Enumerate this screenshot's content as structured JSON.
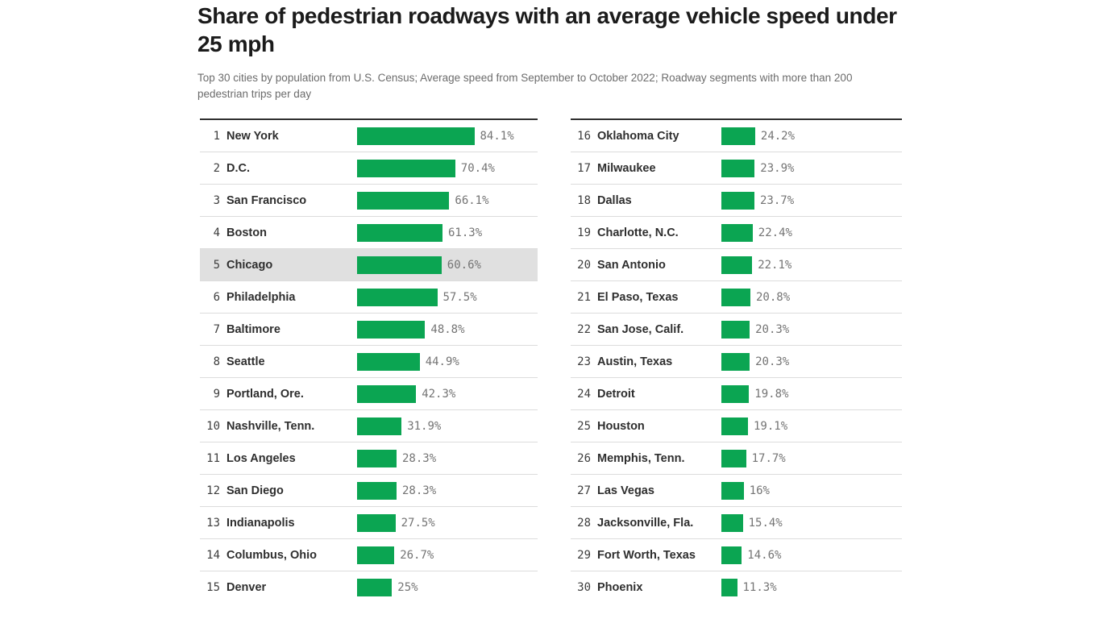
{
  "title": "Share of pedestrian roadways with an average vehicle speed under 25 mph",
  "subtitle": "Top 30 cities by population from U.S. Census; Average speed from September to October 2022; Roadway segments with more than 200 pedestrian trips per day",
  "colors": {
    "bar": "#0ba552",
    "highlight": "#e0e0e0",
    "table_top_rule": "#2f2f2f",
    "row_separator": "#dcdcdc",
    "value_label": "#747474"
  },
  "chart_data": {
    "type": "bar",
    "orientation": "horizontal",
    "title": "Share of pedestrian roadways with an average vehicle speed under 25 mph",
    "subtitle": "Top 30 cities by population from U.S. Census; Average speed from September to October 2022; Roadway segments with more than 200 pedestrian trips per day",
    "value_suffix": "%",
    "xlim": [
      0,
      100
    ],
    "grid": false,
    "legend": false,
    "rows_per_column": 15,
    "highlighted_rank": 5,
    "rows": [
      {
        "rank": 1,
        "city": "New York",
        "value": 84.1,
        "label": "84.1%"
      },
      {
        "rank": 2,
        "city": "D.C.",
        "value": 70.4,
        "label": "70.4%"
      },
      {
        "rank": 3,
        "city": "San Francisco",
        "value": 66.1,
        "label": "66.1%"
      },
      {
        "rank": 4,
        "city": "Boston",
        "value": 61.3,
        "label": "61.3%"
      },
      {
        "rank": 5,
        "city": "Chicago",
        "value": 60.6,
        "label": "60.6%"
      },
      {
        "rank": 6,
        "city": "Philadelphia",
        "value": 57.5,
        "label": "57.5%"
      },
      {
        "rank": 7,
        "city": "Baltimore",
        "value": 48.8,
        "label": "48.8%"
      },
      {
        "rank": 8,
        "city": "Seattle",
        "value": 44.9,
        "label": "44.9%"
      },
      {
        "rank": 9,
        "city": "Portland, Ore.",
        "value": 42.3,
        "label": "42.3%"
      },
      {
        "rank": 10,
        "city": "Nashville, Tenn.",
        "value": 31.9,
        "label": "31.9%"
      },
      {
        "rank": 11,
        "city": "Los Angeles",
        "value": 28.3,
        "label": "28.3%"
      },
      {
        "rank": 12,
        "city": "San Diego",
        "value": 28.3,
        "label": "28.3%"
      },
      {
        "rank": 13,
        "city": "Indianapolis",
        "value": 27.5,
        "label": "27.5%"
      },
      {
        "rank": 14,
        "city": "Columbus, Ohio",
        "value": 26.7,
        "label": "26.7%"
      },
      {
        "rank": 15,
        "city": "Denver",
        "value": 25,
        "label": "25%"
      },
      {
        "rank": 16,
        "city": "Oklahoma City",
        "value": 24.2,
        "label": "24.2%"
      },
      {
        "rank": 17,
        "city": "Milwaukee",
        "value": 23.9,
        "label": "23.9%"
      },
      {
        "rank": 18,
        "city": "Dallas",
        "value": 23.7,
        "label": "23.7%"
      },
      {
        "rank": 19,
        "city": "Charlotte, N.C.",
        "value": 22.4,
        "label": "22.4%"
      },
      {
        "rank": 20,
        "city": "San Antonio",
        "value": 22.1,
        "label": "22.1%"
      },
      {
        "rank": 21,
        "city": "El Paso, Texas",
        "value": 20.8,
        "label": "20.8%"
      },
      {
        "rank": 22,
        "city": "San Jose, Calif.",
        "value": 20.3,
        "label": "20.3%"
      },
      {
        "rank": 23,
        "city": "Austin, Texas",
        "value": 20.3,
        "label": "20.3%"
      },
      {
        "rank": 24,
        "city": "Detroit",
        "value": 19.8,
        "label": "19.8%"
      },
      {
        "rank": 25,
        "city": "Houston",
        "value": 19.1,
        "label": "19.1%"
      },
      {
        "rank": 26,
        "city": "Memphis, Tenn.",
        "value": 17.7,
        "label": "17.7%"
      },
      {
        "rank": 27,
        "city": "Las Vegas",
        "value": 16,
        "label": "16%"
      },
      {
        "rank": 28,
        "city": "Jacksonville, Fla.",
        "value": 15.4,
        "label": "15.4%"
      },
      {
        "rank": 29,
        "city": "Fort Worth, Texas",
        "value": 14.6,
        "label": "14.6%"
      },
      {
        "rank": 30,
        "city": "Phoenix",
        "value": 11.3,
        "label": "11.3%"
      }
    ]
  }
}
